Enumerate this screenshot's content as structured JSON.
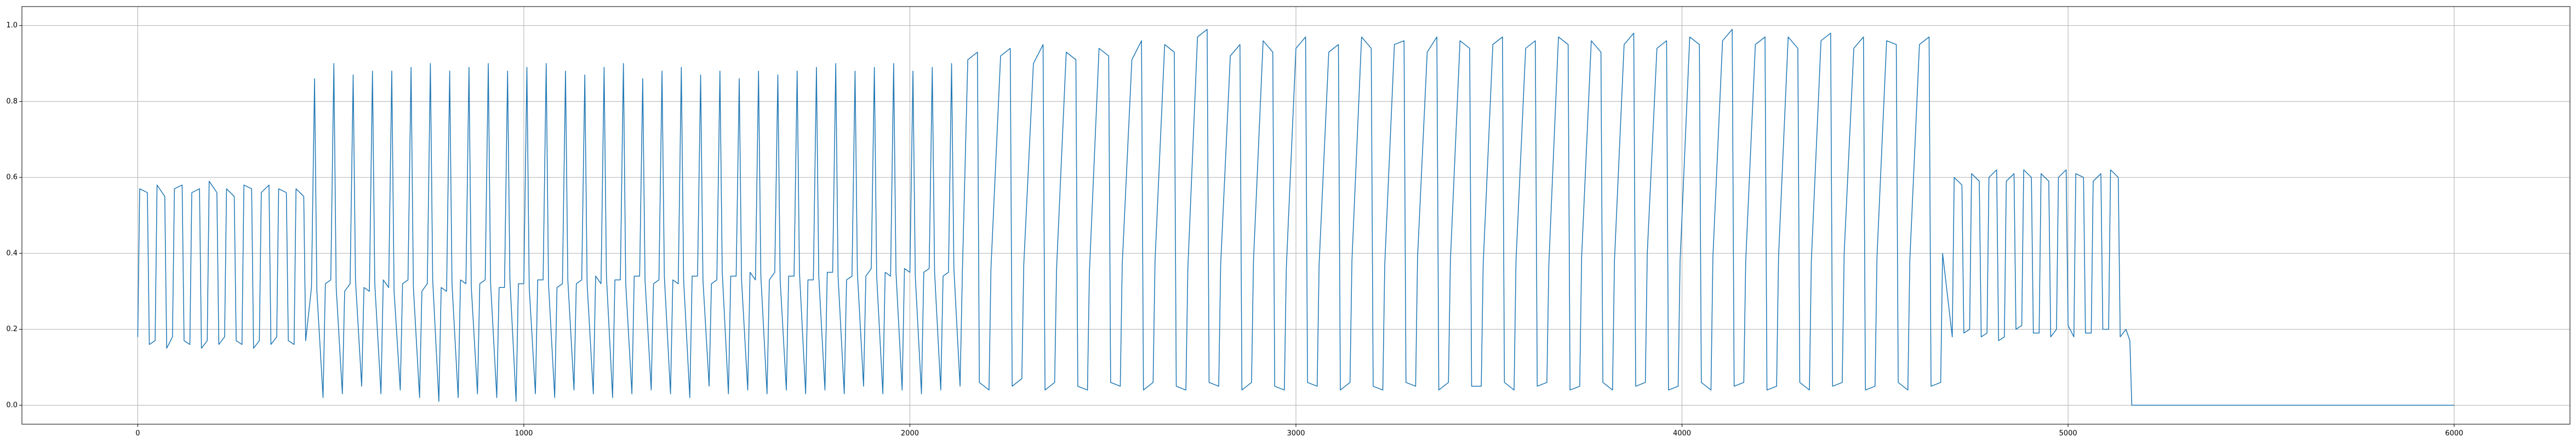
{
  "chart_data": {
    "type": "line",
    "color": "#1f77b4",
    "grid": true,
    "xlim": [
      -300,
      6300
    ],
    "ylim": [
      -0.05,
      1.05
    ],
    "xticks": [
      0,
      1000,
      2000,
      3000,
      4000,
      5000,
      6000
    ],
    "yticks": [
      {
        "value": 0,
        "label": "0.0"
      },
      {
        "value": 0.2,
        "label": "0.2"
      },
      {
        "value": 0.4,
        "label": "0.4"
      },
      {
        "value": 0.6,
        "label": "0.6"
      },
      {
        "value": 0.8,
        "label": "0.8"
      },
      {
        "value": 1,
        "label": "1.0"
      }
    ],
    "x": [
      0,
      5,
      25,
      30,
      45,
      50,
      70,
      75,
      90,
      95,
      115,
      120,
      135,
      140,
      160,
      165,
      180,
      185,
      205,
      210,
      225,
      230,
      250,
      255,
      270,
      275,
      295,
      300,
      315,
      320,
      340,
      345,
      360,
      365,
      385,
      390,
      405,
      410,
      430,
      435,
      450,
      458,
      464,
      480,
      486,
      500,
      508,
      514,
      530,
      536,
      550,
      558,
      564,
      580,
      586,
      600,
      608,
      614,
      630,
      636,
      650,
      658,
      664,
      680,
      686,
      700,
      708,
      714,
      730,
      736,
      750,
      758,
      764,
      780,
      786,
      800,
      808,
      814,
      830,
      836,
      850,
      858,
      864,
      880,
      886,
      900,
      908,
      914,
      930,
      936,
      950,
      958,
      964,
      980,
      986,
      1000,
      1008,
      1014,
      1030,
      1036,
      1050,
      1058,
      1064,
      1080,
      1086,
      1100,
      1108,
      1114,
      1130,
      1136,
      1150,
      1158,
      1164,
      1180,
      1186,
      1200,
      1208,
      1214,
      1230,
      1236,
      1250,
      1258,
      1264,
      1280,
      1286,
      1300,
      1308,
      1314,
      1330,
      1336,
      1350,
      1358,
      1364,
      1380,
      1386,
      1400,
      1408,
      1414,
      1430,
      1436,
      1450,
      1458,
      1464,
      1480,
      1486,
      1500,
      1508,
      1514,
      1530,
      1536,
      1550,
      1558,
      1564,
      1580,
      1586,
      1600,
      1608,
      1614,
      1630,
      1636,
      1650,
      1658,
      1664,
      1680,
      1686,
      1700,
      1708,
      1714,
      1730,
      1736,
      1750,
      1758,
      1764,
      1780,
      1786,
      1800,
      1808,
      1814,
      1830,
      1836,
      1850,
      1858,
      1864,
      1880,
      1886,
      1900,
      1908,
      1914,
      1930,
      1936,
      1950,
      1958,
      1964,
      1980,
      1986,
      2000,
      2008,
      2014,
      2030,
      2036,
      2050,
      2058,
      2064,
      2080,
      2086,
      2100,
      2108,
      2114,
      2130,
      2136,
      2150,
      2175,
      2180,
      2205,
      2210,
      2235,
      2260,
      2265,
      2290,
      2295,
      2320,
      2345,
      2350,
      2375,
      2380,
      2405,
      2430,
      2435,
      2460,
      2465,
      2490,
      2515,
      2520,
      2545,
      2550,
      2575,
      2600,
      2605,
      2630,
      2635,
      2660,
      2685,
      2690,
      2715,
      2720,
      2745,
      2770,
      2775,
      2800,
      2805,
      2830,
      2855,
      2860,
      2885,
      2890,
      2915,
      2940,
      2945,
      2970,
      2975,
      3000,
      3025,
      3030,
      3055,
      3060,
      3085,
      3110,
      3115,
      3140,
      3145,
      3170,
      3195,
      3200,
      3225,
      3230,
      3255,
      3280,
      3285,
      3310,
      3315,
      3340,
      3365,
      3370,
      3395,
      3400,
      3425,
      3450,
      3455,
      3480,
      3485,
      3510,
      3535,
      3540,
      3565,
      3570,
      3595,
      3620,
      3625,
      3650,
      3655,
      3680,
      3705,
      3710,
      3735,
      3740,
      3765,
      3790,
      3795,
      3820,
      3825,
      3850,
      3875,
      3880,
      3905,
      3910,
      3935,
      3960,
      3965,
      3990,
      3995,
      4020,
      4045,
      4050,
      4075,
      4080,
      4105,
      4130,
      4135,
      4160,
      4165,
      4190,
      4215,
      4220,
      4245,
      4250,
      4275,
      4300,
      4305,
      4330,
      4335,
      4360,
      4385,
      4390,
      4415,
      4420,
      4445,
      4470,
      4475,
      4500,
      4505,
      4530,
      4555,
      4560,
      4585,
      4590,
      4615,
      4640,
      4645,
      4670,
      4675,
      4700,
      4705,
      4725,
      4730,
      4745,
      4750,
      4770,
      4775,
      4790,
      4795,
      4815,
      4820,
      4835,
      4840,
      4860,
      4865,
      4880,
      4885,
      4905,
      4910,
      4925,
      4930,
      4950,
      4955,
      4970,
      4975,
      4995,
      5000,
      5015,
      5020,
      5040,
      5045,
      5060,
      5065,
      5085,
      5090,
      5105,
      5110,
      5130,
      5135,
      5150,
      5160,
      5165,
      6000
    ],
    "values": [
      0.18,
      0.57,
      0.56,
      0.16,
      0.17,
      0.58,
      0.55,
      0.15,
      0.18,
      0.57,
      0.58,
      0.17,
      0.16,
      0.56,
      0.57,
      0.15,
      0.17,
      0.59,
      0.56,
      0.16,
      0.18,
      0.57,
      0.55,
      0.17,
      0.16,
      0.58,
      0.57,
      0.15,
      0.17,
      0.56,
      0.58,
      0.16,
      0.18,
      0.57,
      0.56,
      0.17,
      0.16,
      0.57,
      0.55,
      0.17,
      0.31,
      0.86,
      0.3,
      0.02,
      0.32,
      0.33,
      0.9,
      0.31,
      0.03,
      0.3,
      0.32,
      0.87,
      0.33,
      0.05,
      0.31,
      0.3,
      0.88,
      0.32,
      0.03,
      0.33,
      0.31,
      0.88,
      0.3,
      0.04,
      0.32,
      0.33,
      0.89,
      0.31,
      0.02,
      0.3,
      0.32,
      0.9,
      0.33,
      0.01,
      0.31,
      0.3,
      0.88,
      0.32,
      0.02,
      0.33,
      0.32,
      0.89,
      0.31,
      0.03,
      0.32,
      0.33,
      0.9,
      0.32,
      0.02,
      0.31,
      0.31,
      0.88,
      0.33,
      0.01,
      0.32,
      0.32,
      0.89,
      0.31,
      0.03,
      0.33,
      0.33,
      0.9,
      0.32,
      0.02,
      0.31,
      0.32,
      0.88,
      0.33,
      0.04,
      0.32,
      0.33,
      0.87,
      0.32,
      0.03,
      0.34,
      0.32,
      0.89,
      0.34,
      0.02,
      0.33,
      0.33,
      0.9,
      0.32,
      0.03,
      0.34,
      0.34,
      0.86,
      0.33,
      0.04,
      0.32,
      0.33,
      0.88,
      0.34,
      0.03,
      0.33,
      0.32,
      0.89,
      0.33,
      0.02,
      0.34,
      0.34,
      0.87,
      0.33,
      0.05,
      0.32,
      0.33,
      0.88,
      0.35,
      0.03,
      0.34,
      0.34,
      0.86,
      0.33,
      0.04,
      0.35,
      0.33,
      0.88,
      0.34,
      0.03,
      0.33,
      0.35,
      0.87,
      0.33,
      0.04,
      0.34,
      0.34,
      0.88,
      0.35,
      0.03,
      0.33,
      0.33,
      0.89,
      0.34,
      0.04,
      0.35,
      0.35,
      0.9,
      0.34,
      0.03,
      0.33,
      0.34,
      0.88,
      0.35,
      0.05,
      0.34,
      0.36,
      0.89,
      0.34,
      0.03,
      0.35,
      0.34,
      0.9,
      0.35,
      0.04,
      0.36,
      0.35,
      0.88,
      0.34,
      0.03,
      0.35,
      0.36,
      0.89,
      0.35,
      0.04,
      0.34,
      0.35,
      0.9,
      0.36,
      0.05,
      0.35,
      0.91,
      0.93,
      0.06,
      0.04,
      0.36,
      0.92,
      0.94,
      0.05,
      0.07,
      0.37,
      0.9,
      0.95,
      0.04,
      0.06,
      0.36,
      0.93,
      0.91,
      0.05,
      0.04,
      0.35,
      0.94,
      0.92,
      0.06,
      0.05,
      0.37,
      0.91,
      0.96,
      0.04,
      0.06,
      0.38,
      0.95,
      0.93,
      0.05,
      0.04,
      0.36,
      0.97,
      0.99,
      0.06,
      0.05,
      0.37,
      0.92,
      0.95,
      0.04,
      0.06,
      0.38,
      0.96,
      0.93,
      0.05,
      0.04,
      0.36,
      0.94,
      0.97,
      0.06,
      0.05,
      0.37,
      0.93,
      0.95,
      0.04,
      0.06,
      0.38,
      0.97,
      0.94,
      0.05,
      0.04,
      0.37,
      0.95,
      0.96,
      0.06,
      0.05,
      0.39,
      0.93,
      0.97,
      0.04,
      0.06,
      0.38,
      0.96,
      0.94,
      0.05,
      0.05,
      0.37,
      0.95,
      0.97,
      0.06,
      0.04,
      0.38,
      0.94,
      0.96,
      0.05,
      0.06,
      0.37,
      0.97,
      0.95,
      0.04,
      0.05,
      0.39,
      0.96,
      0.93,
      0.06,
      0.04,
      0.38,
      0.95,
      0.98,
      0.05,
      0.06,
      0.4,
      0.94,
      0.96,
      0.04,
      0.05,
      0.38,
      0.97,
      0.95,
      0.06,
      0.04,
      0.39,
      0.96,
      0.99,
      0.05,
      0.06,
      0.38,
      0.95,
      0.97,
      0.04,
      0.05,
      0.39,
      0.97,
      0.94,
      0.06,
      0.04,
      0.38,
      0.96,
      0.98,
      0.05,
      0.06,
      0.4,
      0.94,
      0.97,
      0.04,
      0.05,
      0.39,
      0.96,
      0.95,
      0.06,
      0.04,
      0.38,
      0.95,
      0.97,
      0.05,
      0.06,
      0.4,
      0.18,
      0.6,
      0.58,
      0.19,
      0.2,
      0.61,
      0.59,
      0.18,
      0.19,
      0.6,
      0.62,
      0.17,
      0.18,
      0.59,
      0.61,
      0.2,
      0.21,
      0.62,
      0.6,
      0.19,
      0.19,
      0.61,
      0.59,
      0.18,
      0.2,
      0.6,
      0.62,
      0.21,
      0.18,
      0.61,
      0.6,
      0.19,
      0.19,
      0.59,
      0.61,
      0.2,
      0.2,
      0.62,
      0.6,
      0.18,
      0.2,
      0.17,
      0,
      0
    ]
  }
}
